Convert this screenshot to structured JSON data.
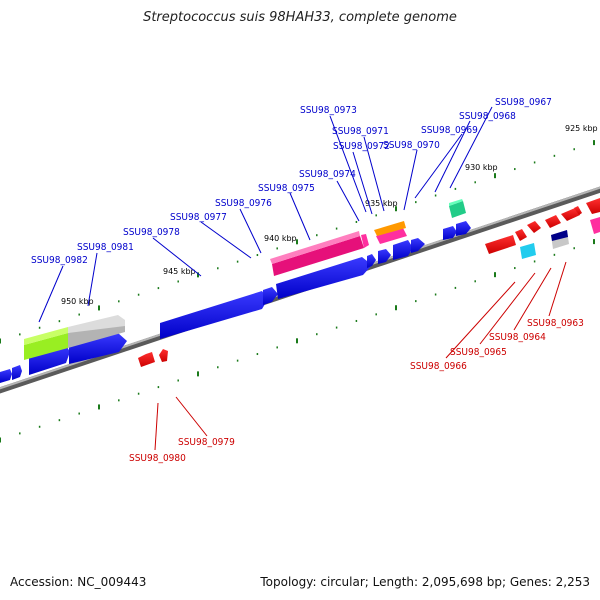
{
  "title": "Streptococcus suis 98HAH33, complete genome",
  "footer": {
    "accession": "Accession: NC_009443",
    "summary": "Topology: circular; Length: 2,095,698 bp; Genes: 2,253"
  },
  "colors": {
    "forward_label": "#0000cc",
    "reverse_label": "#cc0000",
    "backbone": "#8a8a8a",
    "tick": "#1a7a1a"
  },
  "tick_labels": [
    "925 kbp",
    "930 kbp",
    "935 kbp",
    "940 kbp",
    "945 kbp",
    "950 kbp"
  ],
  "forward_genes": [
    "SSU98_0967",
    "SSU98_0968",
    "SSU98_0969",
    "SSU98_0970",
    "SSU98_0971",
    "SSU98_0972",
    "SSU98_0973",
    "SSU98_0974",
    "SSU98_0975",
    "SSU98_0976",
    "SSU98_0977",
    "SSU98_0978",
    "SSU98_0981",
    "SSU98_0982"
  ],
  "reverse_genes": [
    "SSU98_0963",
    "SSU98_0964",
    "SSU98_0965",
    "SSU98_0966",
    "SSU98_0979",
    "SSU98_0980"
  ]
}
